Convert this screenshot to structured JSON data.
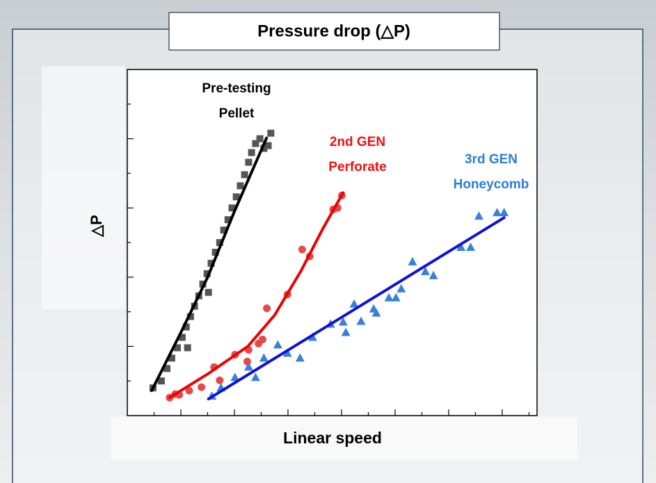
{
  "chart_data": {
    "type": "scatter",
    "title": "Pressure drop (△P)",
    "x_label": "Linear speed",
    "y_label": "△P",
    "xlim": [
      0,
      15.3
    ],
    "ylim": [
      0,
      5
    ],
    "xticks": [
      2,
      4,
      6,
      8,
      10,
      12,
      14
    ],
    "xminorticks": [
      1,
      3,
      5,
      7,
      9,
      11,
      13,
      15
    ],
    "yticks": [
      1,
      2,
      3,
      4
    ],
    "yminorticks": [
      0.5,
      1.5,
      2.5,
      3.5,
      4.5
    ],
    "series": [
      {
        "name": [
          "Pre-testing",
          "Pellet"
        ],
        "marker": "square",
        "marker_color": "#555555",
        "line_color": "#000000",
        "label_color": "#000000",
        "x": [
          0.96,
          1.27,
          1.48,
          1.66,
          1.87,
          2.05,
          2.2,
          2.36,
          2.51,
          2.67,
          2.82,
          2.98,
          3.13,
          3.29,
          3.45,
          3.6,
          3.76,
          3.91,
          4.07,
          4.22,
          4.38,
          4.53,
          4.64,
          4.79,
          4.95,
          5.1,
          5.26,
          5.36,
          3.03,
          2.25
        ],
        "y": [
          0.4,
          0.5,
          0.68,
          0.83,
          0.98,
          1.13,
          1.28,
          1.43,
          1.58,
          1.73,
          1.9,
          2.05,
          2.2,
          2.36,
          2.5,
          2.68,
          2.83,
          3.0,
          3.16,
          3.32,
          3.48,
          3.66,
          3.8,
          3.93,
          4.0,
          3.86,
          3.9,
          4.08,
          1.78,
          0.98
        ],
        "fit_x": [
          0.91,
          2.0,
          3.0,
          4.0,
          5.2
        ],
        "fit_y": [
          0.36,
          1.2,
          2.0,
          2.95,
          4.01
        ]
      },
      {
        "name": [
          "2nd GEN",
          "Perforate"
        ],
        "marker": "circle",
        "marker_color": "#e84848",
        "line_color": "#ee0000",
        "label_color": "#ee1111",
        "x": [
          1.58,
          1.79,
          1.94,
          2.31,
          2.77,
          3.24,
          3.45,
          4.02,
          4.48,
          4.53,
          4.9,
          5.05,
          5.21,
          5.98,
          6.53,
          6.81,
          7.69,
          7.85,
          8.01
        ],
        "y": [
          0.26,
          0.31,
          0.3,
          0.36,
          0.41,
          0.7,
          0.51,
          0.88,
          0.78,
          0.95,
          1.04,
          1.1,
          1.55,
          1.75,
          2.4,
          2.3,
          2.98,
          3.0,
          3.18
        ],
        "fit_x": [
          1.58,
          3.0,
          4.5,
          5.5,
          6.5,
          7.3,
          8.06
        ],
        "fit_y": [
          0.26,
          0.6,
          1.0,
          1.45,
          2.1,
          2.7,
          3.22
        ]
      },
      {
        "name": [
          "3rd GEN",
          "Honeycomb"
        ],
        "marker": "triangle",
        "marker_color": "#3a80d8",
        "line_color": "#1010d8",
        "label_color": "#2a7de0",
        "x": [
          3.16,
          3.5,
          4.02,
          4.53,
          4.79,
          5.1,
          5.62,
          5.98,
          6.45,
          6.92,
          7.59,
          8.06,
          8.16,
          8.47,
          8.73,
          9.2,
          9.3,
          9.77,
          10.03,
          10.23,
          10.65,
          11.13,
          11.43,
          12.46,
          12.82,
          13.13,
          13.81,
          14.07
        ],
        "y": [
          0.28,
          0.4,
          0.55,
          0.7,
          0.55,
          0.83,
          1.02,
          0.9,
          0.83,
          1.13,
          1.32,
          1.35,
          1.2,
          1.61,
          1.36,
          1.54,
          1.48,
          1.7,
          1.7,
          1.83,
          2.22,
          2.08,
          2.02,
          2.43,
          2.43,
          2.88,
          2.93,
          2.93
        ],
        "fit_x": [
          3.03,
          14.07
        ],
        "fit_y": [
          0.24,
          2.86
        ]
      }
    ]
  }
}
